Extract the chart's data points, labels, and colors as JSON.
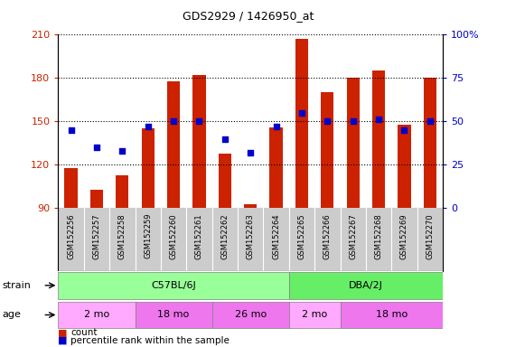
{
  "title": "GDS2929 / 1426950_at",
  "samples": [
    "GSM152256",
    "GSM152257",
    "GSM152258",
    "GSM152259",
    "GSM152260",
    "GSM152261",
    "GSM152262",
    "GSM152263",
    "GSM152264",
    "GSM152265",
    "GSM152266",
    "GSM152267",
    "GSM152268",
    "GSM152269",
    "GSM152270"
  ],
  "counts": [
    118,
    103,
    113,
    145,
    178,
    182,
    128,
    93,
    146,
    207,
    170,
    180,
    185,
    148,
    180
  ],
  "percentiles": [
    45,
    35,
    33,
    47,
    50,
    50,
    40,
    32,
    47,
    55,
    50,
    50,
    51,
    45,
    50
  ],
  "ylim_left": [
    90,
    210
  ],
  "ylim_right": [
    0,
    100
  ],
  "yticks_left": [
    90,
    120,
    150,
    180,
    210
  ],
  "yticks_right": [
    0,
    25,
    50,
    75,
    100
  ],
  "bar_color": "#CC2200",
  "dot_color": "#0000CC",
  "strain_groups": [
    {
      "label": "C57BL/6J",
      "start": 0,
      "end": 9,
      "color": "#99FF99"
    },
    {
      "label": "DBA/2J",
      "start": 9,
      "end": 15,
      "color": "#66EE66"
    }
  ],
  "age_groups": [
    {
      "label": "2 mo",
      "start": 0,
      "end": 3,
      "color": "#FFAAFF"
    },
    {
      "label": "18 mo",
      "start": 3,
      "end": 6,
      "color": "#EE77EE"
    },
    {
      "label": "26 mo",
      "start": 6,
      "end": 9,
      "color": "#EE77EE"
    },
    {
      "label": "2 mo",
      "start": 9,
      "end": 11,
      "color": "#FFAAFF"
    },
    {
      "label": "18 mo",
      "start": 11,
      "end": 15,
      "color": "#EE77EE"
    }
  ],
  "legend_count_color": "#CC2200",
  "legend_dot_color": "#0000CC",
  "axis_color_left": "#CC2200",
  "axis_color_right": "#0000CC",
  "xticklabel_bg": "#CCCCCC",
  "bar_width": 0.5,
  "baseline": 90,
  "figsize": [
    5.6,
    3.84
  ],
  "dpi": 100
}
